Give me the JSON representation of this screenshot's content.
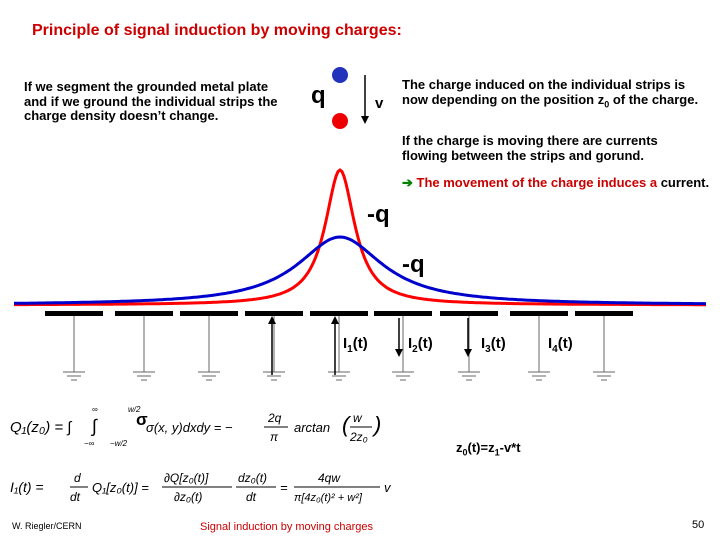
{
  "title": "Principle of signal induction by moving charges:",
  "left_text": "If we segment the grounded metal plate and if we ground the individual strips the charge density doesn’t change.",
  "right_text_1": {
    "line1": "The charge induced on the individual strips is now depending on the position z",
    "sub": "0",
    "line2": " of the charge."
  },
  "right_text_2": "If the charge is moving there are currents flowing between the strips and gorund.",
  "right_text_3": {
    "arrow": "➔",
    "text": " The movement of the charge induces a ",
    "text_black": "current."
  },
  "labels": {
    "q": "q",
    "v": "v",
    "minus_q_red": "-q",
    "minus_q_blue": "-q",
    "i1": "I",
    "i1_sub": "1",
    "i1_arg": "(t)",
    "i2": "I",
    "i2_sub": "2",
    "i2_arg": "(t)",
    "i3": "I",
    "i3_sub": "3",
    "i3_arg": "(t)",
    "i4": "I",
    "i4_sub": "4",
    "i4_arg": "(t)",
    "sigma": "σ"
  },
  "formulas": {
    "q1": "Q₁(z₀) = −∫∫ σ(x, y) dx dy = −(2q/π) arctan(w / 2z₀)",
    "q1_lhs": "Q₁(z₀) = ∫",
    "q1_int": "∫",
    "q1_lim_upper_outer": "∞",
    "q1_lim_lower_outer": "−∞",
    "q1_lim_upper_inner": "w/2",
    "q1_lim_lower_inner": "−w/2",
    "q1_integrand": "σ(x, y)dxdy = −",
    "q1_num": "2q",
    "q1_den": "π",
    "q1_arctan": "arctan",
    "q1_arg_num": "w",
    "q1_arg_den": "2z₀",
    "i1_lhs": "I₁(t) =",
    "i1_d_num": "d",
    "i1_d_den": "dt",
    "i1_q": "Q₁[z₀(t)] =",
    "i1_p_num": "∂Q[z₀(t)]",
    "i1_p_den": "∂z₀(t)",
    "i1_p2_num": "dz₀(t)",
    "i1_p2_den": "dt",
    "i1_res_num": "4qw",
    "i1_res_den": "π[4z₀(t)² + w²]",
    "i1_v": "v",
    "z0": "z",
    "z0_sub": "0",
    "z0_rest": "(t)=z",
    "z1_sub": "1",
    "z0_tail": "-v*t"
  },
  "footer": {
    "author": "W. Riegler/CERN",
    "center": "Signal induction by moving charges",
    "page": "50"
  },
  "colors": {
    "title": "#cc0000",
    "red_curve": "#ff0000",
    "blue_curve": "#0000cc",
    "plate": "#000000",
    "green_arrow": "#008000"
  }
}
